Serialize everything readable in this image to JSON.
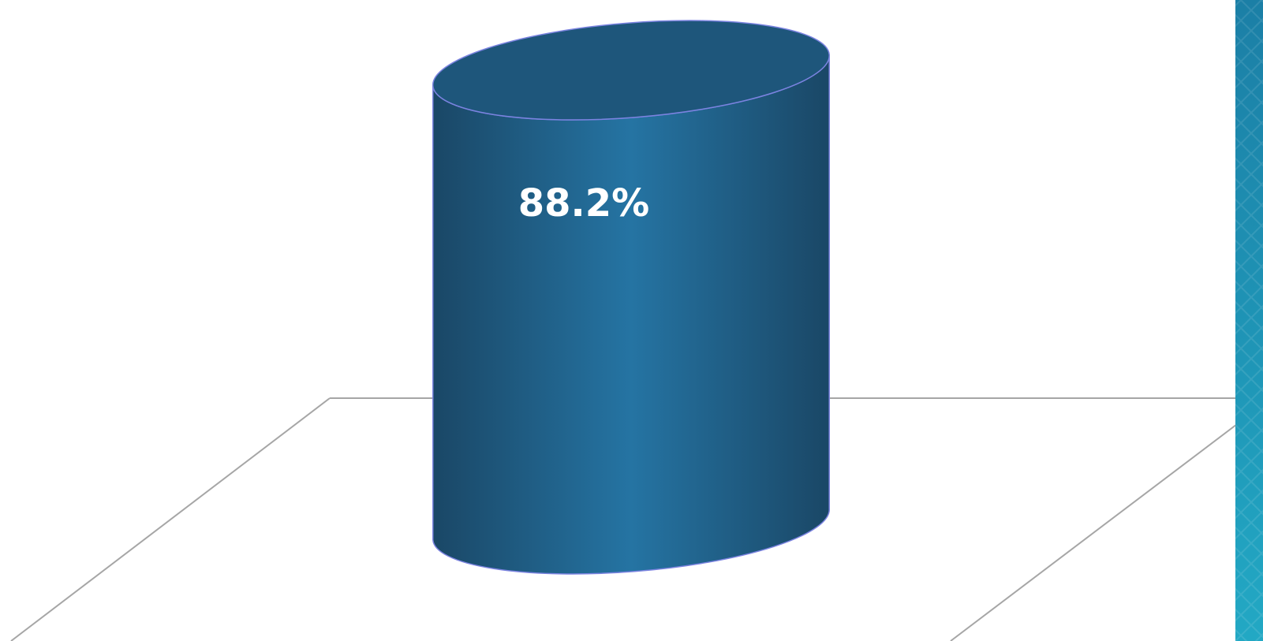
{
  "chart_data": {
    "type": "bar",
    "categories": [
      ""
    ],
    "values": [
      88.2
    ],
    "data_labels": [
      "88.2%"
    ],
    "ylim": [
      0,
      100
    ],
    "grid": false,
    "legend": "none",
    "shape": "3d-cylinder"
  },
  "colors": {
    "bar": "#2574a3",
    "bar_dark": "#1a4766",
    "bar_top": "#1e567b",
    "bar_outline": "#7b83e0",
    "floor_line": "#a6a6a6",
    "side_panel": "#1b7fa6",
    "side_panel_light": "#22a8c4"
  }
}
